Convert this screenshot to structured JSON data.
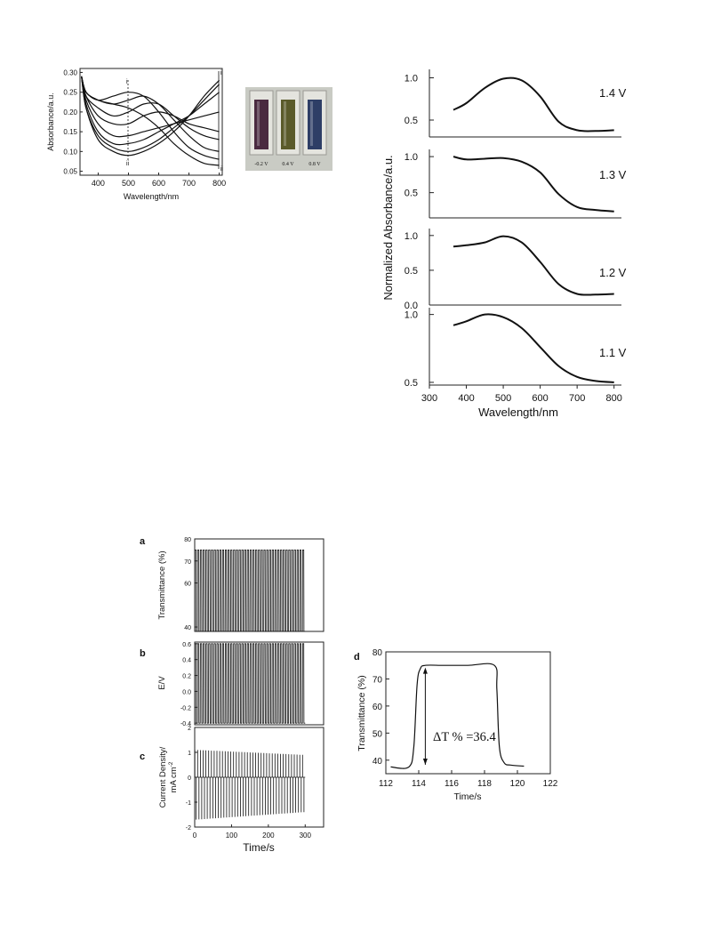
{
  "chart_data": [
    {
      "id": "spectra",
      "type": "line",
      "xlabel": "Wavelength/nm",
      "ylabel": "Absorbance/a.u.",
      "xlim": [
        340,
        810
      ],
      "ylim": [
        0.04,
        0.31
      ],
      "xticks": [
        400,
        500,
        600,
        700,
        800
      ],
      "yticks": [
        0.05,
        0.1,
        0.15,
        0.2,
        0.25,
        0.3
      ],
      "annotations": {
        "start_label": "i",
        "end_label": "ii"
      },
      "x": [
        345,
        360,
        400,
        450,
        500,
        550,
        600,
        650,
        700,
        750,
        800
      ],
      "series": [
        {
          "values": [
            0.29,
            0.25,
            0.23,
            0.22,
            0.21,
            0.19,
            0.16,
            0.12,
            0.09,
            0.07,
            0.065
          ]
        },
        {
          "values": [
            0.29,
            0.25,
            0.23,
            0.24,
            0.25,
            0.24,
            0.2,
            0.15,
            0.11,
            0.09,
            0.08
          ]
        },
        {
          "values": [
            0.29,
            0.25,
            0.23,
            0.22,
            0.23,
            0.24,
            0.22,
            0.18,
            0.14,
            0.11,
            0.1
          ]
        },
        {
          "values": [
            0.29,
            0.24,
            0.21,
            0.19,
            0.2,
            0.22,
            0.22,
            0.19,
            0.16,
            0.14,
            0.13
          ]
        },
        {
          "values": [
            0.29,
            0.24,
            0.19,
            0.17,
            0.17,
            0.19,
            0.2,
            0.19,
            0.17,
            0.16,
            0.15
          ]
        },
        {
          "values": [
            0.29,
            0.23,
            0.17,
            0.14,
            0.14,
            0.15,
            0.16,
            0.17,
            0.18,
            0.19,
            0.2
          ]
        },
        {
          "values": [
            0.29,
            0.22,
            0.15,
            0.12,
            0.12,
            0.13,
            0.15,
            0.17,
            0.19,
            0.22,
            0.25
          ]
        },
        {
          "values": [
            0.29,
            0.21,
            0.14,
            0.11,
            0.1,
            0.11,
            0.13,
            0.16,
            0.19,
            0.23,
            0.27
          ]
        },
        {
          "values": [
            0.29,
            0.21,
            0.13,
            0.1,
            0.09,
            0.1,
            0.12,
            0.15,
            0.19,
            0.24,
            0.28
          ]
        }
      ]
    },
    {
      "id": "normalized",
      "type": "line",
      "xlabel": "Wavelength/nm",
      "ylabel": "Normalized Absorbance/a.u.",
      "xlim": [
        300,
        820
      ],
      "xticks": [
        300,
        400,
        500,
        600,
        700,
        800
      ],
      "x": [
        365,
        400,
        450,
        500,
        550,
        600,
        650,
        700,
        750,
        800
      ],
      "panels": [
        {
          "label": "1.4 V",
          "ylim": [
            0.3,
            1.1
          ],
          "yticks": [
            0.5,
            1.0
          ],
          "values": [
            0.62,
            0.7,
            0.88,
            0.99,
            0.97,
            0.78,
            0.48,
            0.38,
            0.37,
            0.38
          ]
        },
        {
          "label": "1.3 V",
          "ylim": [
            0.15,
            1.1
          ],
          "yticks": [
            0.5,
            1.0
          ],
          "values": [
            1.0,
            0.96,
            0.97,
            0.98,
            0.93,
            0.78,
            0.48,
            0.3,
            0.26,
            0.24
          ]
        },
        {
          "label": "1.2 V",
          "ylim": [
            0.0,
            1.1
          ],
          "yticks": [
            0.0,
            0.5,
            1.0
          ],
          "values": [
            0.84,
            0.86,
            0.9,
            0.99,
            0.9,
            0.62,
            0.3,
            0.16,
            0.15,
            0.16
          ]
        },
        {
          "label": "1.1 V",
          "ylim": [
            0.48,
            1.05
          ],
          "yticks": [
            0.5,
            1.0
          ],
          "values": [
            0.92,
            0.95,
            1.0,
            0.98,
            0.9,
            0.76,
            0.62,
            0.54,
            0.51,
            0.5
          ]
        }
      ]
    },
    {
      "id": "transmittance-cycles",
      "type": "line",
      "panel_label": "a",
      "ylabel": "Transmittance (%)",
      "xlim": [
        0,
        350
      ],
      "ylim": [
        38,
        80
      ],
      "yticks": [
        40,
        60,
        70,
        80
      ],
      "cycles": 40,
      "t_end": 300,
      "low": 38,
      "high": 75
    },
    {
      "id": "potential-cycles",
      "type": "line",
      "panel_label": "b",
      "ylabel": "E/V",
      "xlim": [
        0,
        350
      ],
      "ylim": [
        -0.4,
        0.6
      ],
      "yticks": [
        -0.4,
        -0.2,
        0.0,
        0.2,
        0.4,
        0.6
      ],
      "tick_labels": [
        "-0.4",
        "-0.2",
        "0.0",
        "0.2",
        "0.4",
        "0.6"
      ],
      "cycles": 40,
      "t_end": 300,
      "low": -0.4,
      "high": 0.6
    },
    {
      "id": "current-cycles",
      "type": "line",
      "panel_label": "c",
      "ylabel": "Current Density/",
      "ylabel2": "mA cm",
      "ylabel2_sup": "-2",
      "xlabel": "Time/s",
      "xlim": [
        0,
        350
      ],
      "ylim": [
        -2,
        2
      ],
      "xticks": [
        0,
        100,
        200,
        300
      ],
      "yticks": [
        -2,
        -1,
        0,
        1,
        2
      ],
      "tick_labels": [
        "-2",
        "-1",
        "0",
        "1",
        "2"
      ],
      "cycles": 40,
      "t_end": 300,
      "pos_start": 1.1,
      "pos_end": 0.9,
      "neg_start": -1.7,
      "neg_end": -1.4
    },
    {
      "id": "single-step",
      "type": "line",
      "panel_label": "d",
      "ylabel": "Transmittance (%)",
      "xlabel": "Time/s",
      "xlim": [
        112,
        122
      ],
      "ylim": [
        35,
        80
      ],
      "xticks": [
        112,
        114,
        116,
        118,
        120,
        122
      ],
      "yticks": [
        40,
        50,
        60,
        70,
        80
      ],
      "annotation": "ΔT % =36.4",
      "x": [
        112.3,
        113.4,
        113.7,
        113.9,
        114.1,
        114.4,
        115.5,
        117.0,
        118.6,
        118.75,
        118.9,
        119.2,
        119.6,
        120.4
      ],
      "y": [
        37.5,
        37.5,
        45,
        68,
        73.8,
        75,
        75,
        75,
        75,
        66,
        45,
        39,
        38.2,
        37.8
      ]
    }
  ],
  "photo": {
    "labels": [
      "-0.2 V",
      "0.4 V",
      "0.8 V"
    ],
    "colors": [
      "#4a2a40",
      "#5a5a2a",
      "#2e3e66"
    ]
  }
}
